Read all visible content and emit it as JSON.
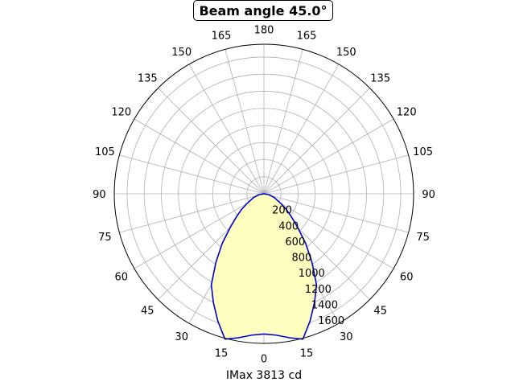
{
  "chart_data": {
    "type": "polar-line",
    "title": "Beam angle 45.0°",
    "xlabel": "IMax 3813 cd",
    "angle_ticks": [
      "0",
      "15",
      "30",
      "45",
      "60",
      "75",
      "90",
      "105",
      "120",
      "135",
      "150",
      "165",
      "180",
      "165",
      "150",
      "135",
      "120",
      "105",
      "90",
      "75",
      "60",
      "45",
      "30",
      "15"
    ],
    "angle_tick_degrees": [
      0,
      15,
      30,
      45,
      60,
      75,
      90,
      105,
      120,
      135,
      150,
      165,
      180,
      -165,
      -150,
      -135,
      -120,
      -105,
      -90,
      -75,
      -60,
      -45,
      -30,
      -15
    ],
    "radial_ticks": [
      200,
      400,
      600,
      800,
      1000,
      1200,
      1400,
      1600
    ],
    "radial_max": 1750,
    "grid": true,
    "line_color": "#0000cc",
    "fill_color": "#ffffc0",
    "series": [
      {
        "angles_deg": [
          0,
          5,
          10,
          15,
          20,
          25,
          30,
          35,
          40,
          45,
          50,
          55,
          60,
          70,
          80,
          90,
          -90,
          -80,
          -70,
          -60,
          -55,
          -50,
          -45,
          -40,
          -35,
          -30,
          -25,
          -20,
          -15,
          -10,
          -5,
          0
        ],
        "values": [
          1640,
          1660,
          1710,
          1760,
          1580,
          1400,
          1230,
          980,
          760,
          560,
          420,
          320,
          230,
          130,
          60,
          0,
          0,
          60,
          130,
          230,
          320,
          420,
          560,
          760,
          980,
          1230,
          1400,
          1580,
          1760,
          1710,
          1660,
          1640
        ]
      }
    ]
  }
}
